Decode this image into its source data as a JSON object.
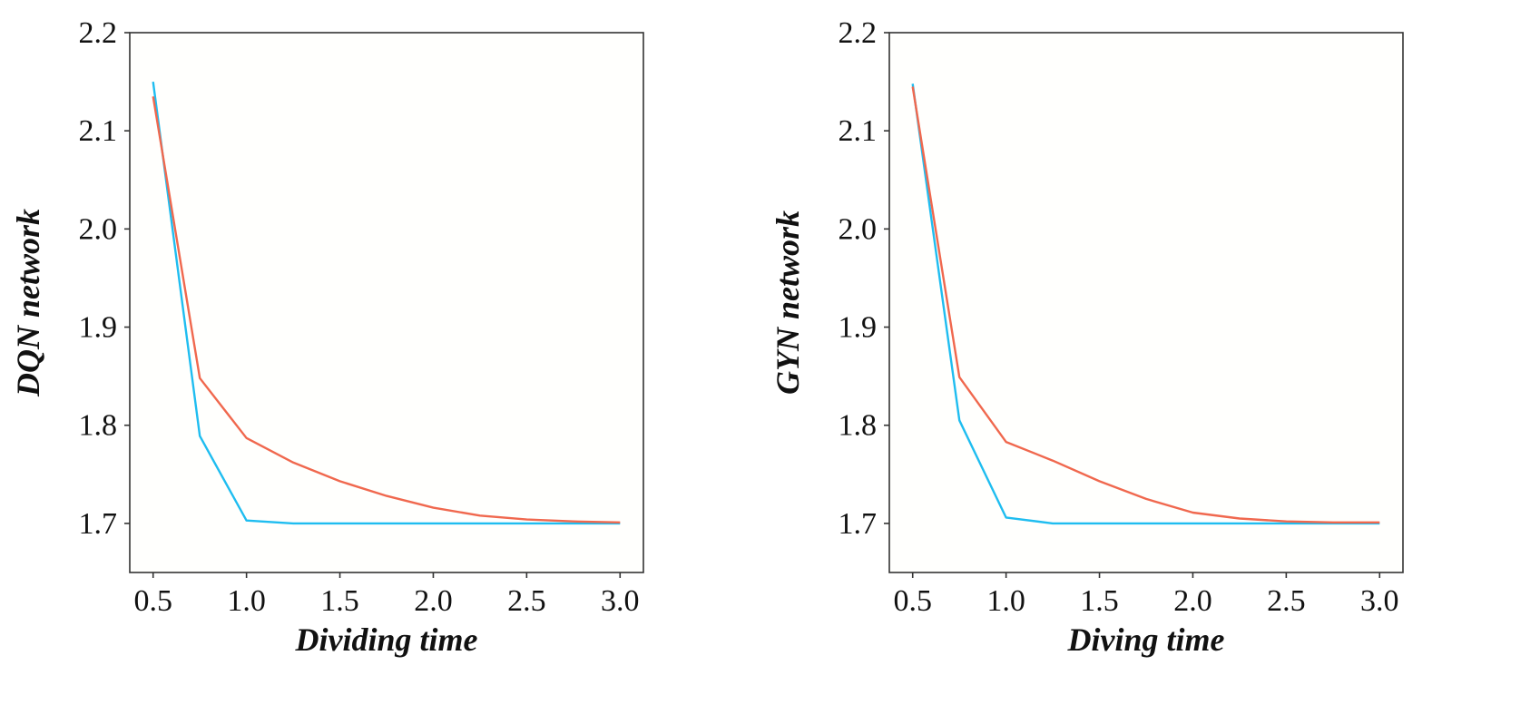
{
  "chart_data": [
    {
      "type": "line",
      "title": "",
      "xlabel": "Dividing time",
      "ylabel": "DQN network",
      "xlim": [
        0.375,
        3.125
      ],
      "ylim": [
        1.65,
        2.2
      ],
      "xticks": [
        0.5,
        1.0,
        1.5,
        2.0,
        2.5,
        3.0
      ],
      "xtick_labels": [
        "0.5",
        "1.0",
        "1.5",
        "2.0",
        "2.5",
        "3.0"
      ],
      "yticks": [
        1.7,
        1.8,
        1.9,
        2.0,
        2.1,
        2.2
      ],
      "ytick_labels": [
        "1.7",
        "1.8",
        "1.9",
        "2.0",
        "2.1",
        "2.2"
      ],
      "grid": false,
      "x": [
        0.5,
        0.75,
        1.0,
        1.25,
        1.5,
        1.75,
        2.0,
        2.25,
        2.5,
        2.75,
        3.0
      ],
      "series": [
        {
          "name": "blue",
          "color": "#1fbdf0",
          "values": [
            2.15,
            1.789,
            1.703,
            1.7,
            1.7,
            1.7,
            1.7,
            1.7,
            1.7,
            1.7,
            1.7
          ]
        },
        {
          "name": "red",
          "color": "#f0684e",
          "values": [
            2.135,
            1.848,
            1.787,
            1.762,
            1.743,
            1.728,
            1.716,
            1.708,
            1.704,
            1.702,
            1.701
          ]
        }
      ]
    },
    {
      "type": "line",
      "title": "",
      "xlabel": "Diving time",
      "ylabel": "GYN network",
      "xlim": [
        0.375,
        3.125
      ],
      "ylim": [
        1.65,
        2.2
      ],
      "xticks": [
        0.5,
        1.0,
        1.5,
        2.0,
        2.5,
        3.0
      ],
      "xtick_labels": [
        "0.5",
        "1.0",
        "1.5",
        "2.0",
        "2.5",
        "3.0"
      ],
      "yticks": [
        1.7,
        1.8,
        1.9,
        2.0,
        2.1,
        2.2
      ],
      "ytick_labels": [
        "1.7",
        "1.8",
        "1.9",
        "2.0",
        "2.1",
        "2.2"
      ],
      "grid": false,
      "x": [
        0.5,
        0.75,
        1.0,
        1.25,
        1.5,
        1.75,
        2.0,
        2.25,
        2.5,
        2.75,
        3.0
      ],
      "series": [
        {
          "name": "blue",
          "color": "#1fbdf0",
          "values": [
            2.148,
            1.805,
            1.706,
            1.7,
            1.7,
            1.7,
            1.7,
            1.7,
            1.7,
            1.7,
            1.7
          ]
        },
        {
          "name": "red",
          "color": "#f0684e",
          "values": [
            2.145,
            1.849,
            1.783,
            1.764,
            1.743,
            1.725,
            1.711,
            1.705,
            1.702,
            1.701,
            1.701
          ]
        }
      ]
    }
  ]
}
